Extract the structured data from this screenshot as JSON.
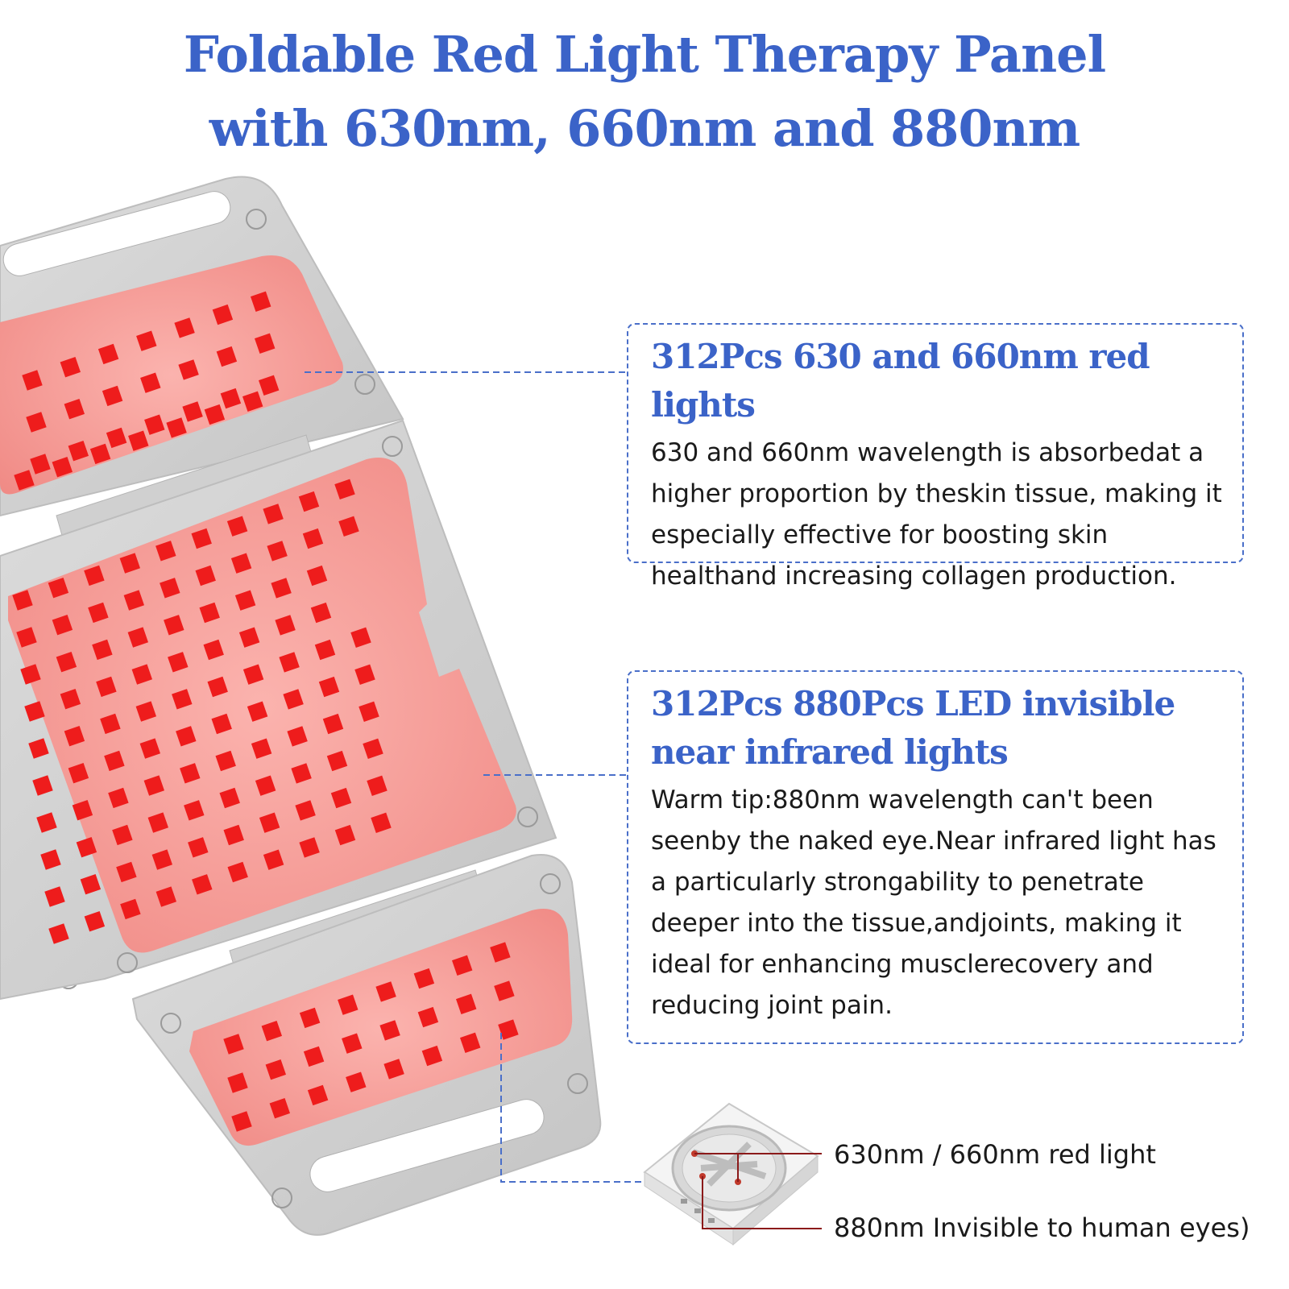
{
  "title": {
    "line1": "Foldable Red Light Therapy Panel",
    "line2": "with 630nm, 660nm and 880nm"
  },
  "red_lights_box": {
    "heading": "312Pcs 630 and 660nm red lights",
    "body": "630 and 660nm wavelength is absorbedat a higher proportion by theskin tissue, making it especially effective for boosting skin healthand increasing collagen production."
  },
  "infrared_box": {
    "heading": "312Pcs 880Pcs LED invisible near infrared lights",
    "body": "Warm tip:880nm wavelength can't been seenby the naked eye.Near infrared light has a particularly strongability to penetrate deeper into the tissue,andjoints, making it ideal for enhancing musclerecovery and reducing joint pain."
  },
  "chip_labels": {
    "red": "630nm / 660nm red light",
    "infrared": "880nm Invisible to human eyes)"
  },
  "colors": {
    "title": "#3b63c8",
    "panel_frame": "#cfcfcf",
    "led_pad": "#f4918c",
    "led": "#ee1c1c",
    "callout_line": "#4a6fc9"
  }
}
